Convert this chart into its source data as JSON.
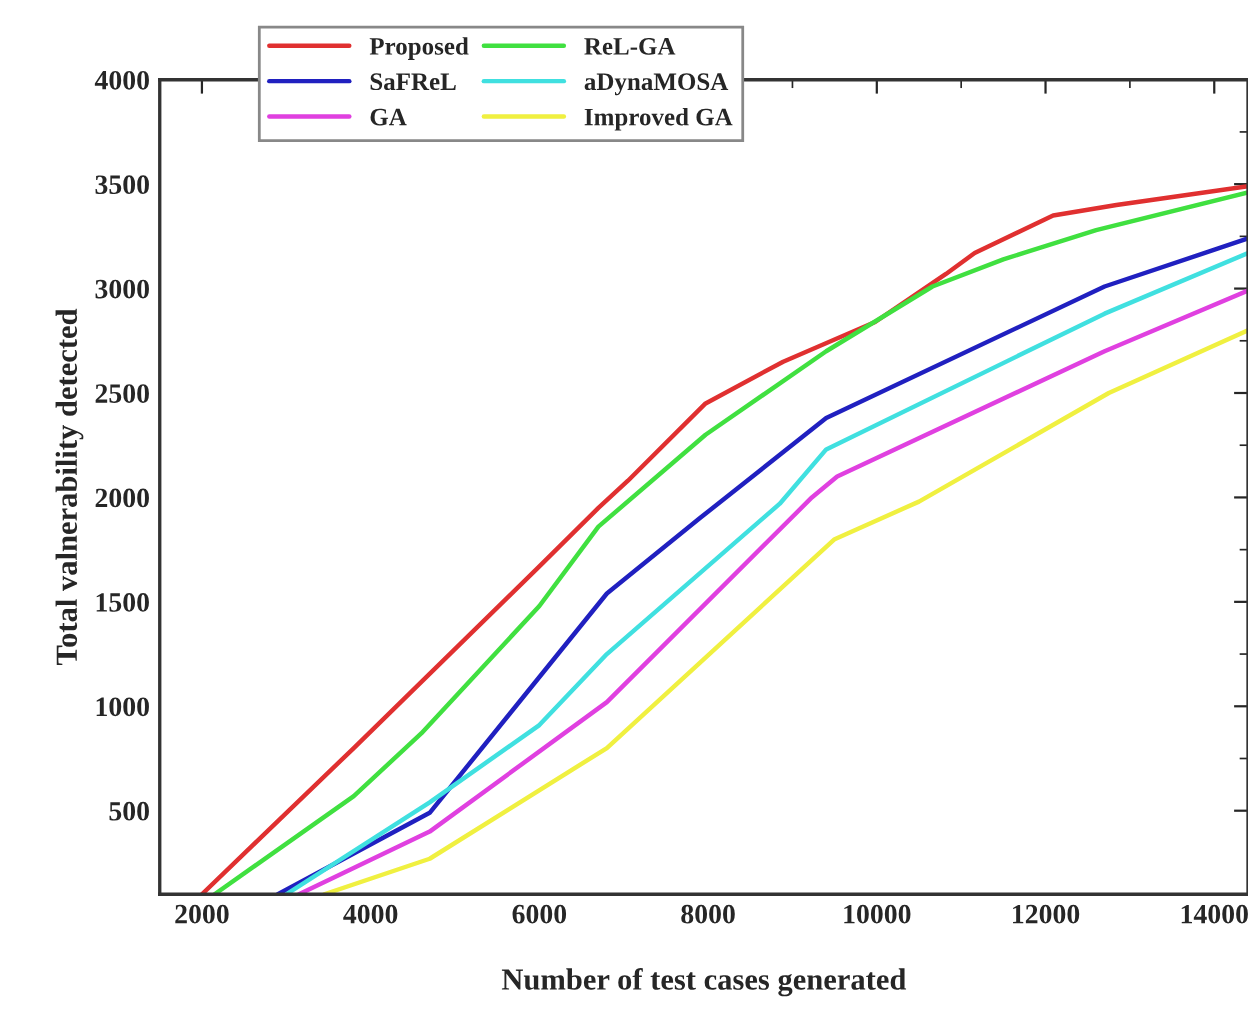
{
  "chart_data": {
    "type": "line",
    "xlabel": "Number of test cases generated",
    "ylabel": "Total valnerability detected",
    "xlim": [
      1500,
      14400
    ],
    "xticks": [
      2000,
      4000,
      6000,
      8000,
      10000,
      12000,
      14000
    ],
    "ylim": [
      100,
      4000
    ],
    "yticks": [
      500,
      1000,
      1500,
      2000,
      2500,
      3000,
      3500,
      4000
    ],
    "legend": "top left",
    "grid": false,
    "marker": "none",
    "line_style": "solid",
    "series": [
      {
        "name": "Proposed",
        "color": "#e03030",
        "x": [
          2000,
          3800,
          6000,
          6700,
          7050,
          7970,
          8890,
          9980,
          10820,
          11160,
          12090,
          12840,
          14400
        ],
        "values": [
          100,
          800,
          1670,
          1950,
          2080,
          2450,
          2650,
          2840,
          3070,
          3170,
          3350,
          3400,
          3490
        ]
      },
      {
        "name": "ReL-GA",
        "color": "#40e040",
        "x": [
          2150,
          3800,
          4600,
          6000,
          6700,
          7970,
          9400,
          10660,
          11500,
          12600,
          14400
        ],
        "values": [
          100,
          570,
          870,
          1480,
          1860,
          2300,
          2700,
          3010,
          3140,
          3280,
          3460
        ]
      },
      {
        "name": "SaFReL",
        "color": "#2020c0",
        "x": [
          2900,
          4700,
          6800,
          7900,
          9400,
          12700,
          14400
        ],
        "values": [
          100,
          490,
          1540,
          1900,
          2380,
          3010,
          3240
        ]
      },
      {
        "name": "aDynaMOSA",
        "color": "#40e0e0",
        "x": [
          3000,
          4700,
          6000,
          6800,
          8850,
          9400,
          12700,
          14400
        ],
        "values": [
          100,
          540,
          910,
          1250,
          1970,
          2230,
          2880,
          3170
        ]
      },
      {
        "name": "GA",
        "color": "#e040e0",
        "x": [
          3150,
          4700,
          6800,
          9230,
          9530,
          12700,
          14400
        ],
        "values": [
          100,
          400,
          1020,
          2000,
          2100,
          2700,
          2990
        ]
      },
      {
        "name": "Improved GA",
        "color": "#f0f040",
        "x": [
          3450,
          4700,
          6800,
          9500,
          10500,
          12750,
          14400
        ],
        "values": [
          100,
          270,
          800,
          1800,
          1980,
          2500,
          2800
        ]
      }
    ]
  }
}
